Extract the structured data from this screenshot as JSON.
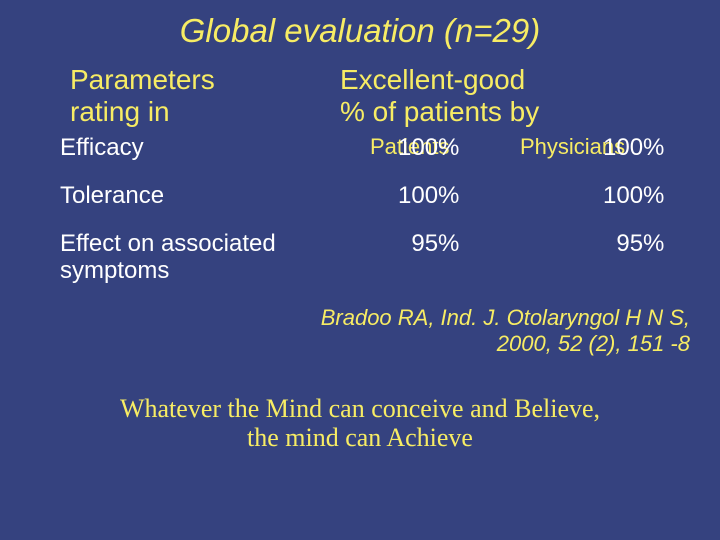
{
  "colors": {
    "background": "#35427f",
    "accent": "#f7ec64",
    "body_text": "#ffffff"
  },
  "typography": {
    "title_fontsize": 33,
    "header_fontsize": 28,
    "subheader_fontsize": 22,
    "row_fontsize": 24,
    "citation_fontsize": 22,
    "quote_fontsize": 26,
    "title_font": "Arial italic",
    "quote_font": "Times New Roman"
  },
  "title": "Global evaluation (n=29)",
  "headers": {
    "left_line1": "Parameters",
    "left_line2": "rating in",
    "right_line1": "Excellent-good",
    "right_line2": "% of patients by"
  },
  "subheaders": {
    "col1": "Patients",
    "col2": "Physicians"
  },
  "table": {
    "type": "table",
    "columns": [
      "Parameter",
      "Patients",
      "Physicians"
    ],
    "rows": [
      {
        "param": "Efficacy",
        "patients": "100%",
        "physicians": "100%"
      },
      {
        "param": "Tolerance",
        "patients": "100%",
        "physicians": "100%"
      },
      {
        "param_line1": "Effect on associated",
        "param_line2": "symptoms",
        "patients": "95%",
        "physicians": "95%"
      }
    ]
  },
  "citation": {
    "line1": "Bradoo RA, Ind. J. Otolaryngol H N S,",
    "line2": "2000, 52 (2), 151 -8"
  },
  "quote": {
    "line1": "Whatever the Mind can conceive and Believe,",
    "line2": "the mind can Achieve"
  }
}
